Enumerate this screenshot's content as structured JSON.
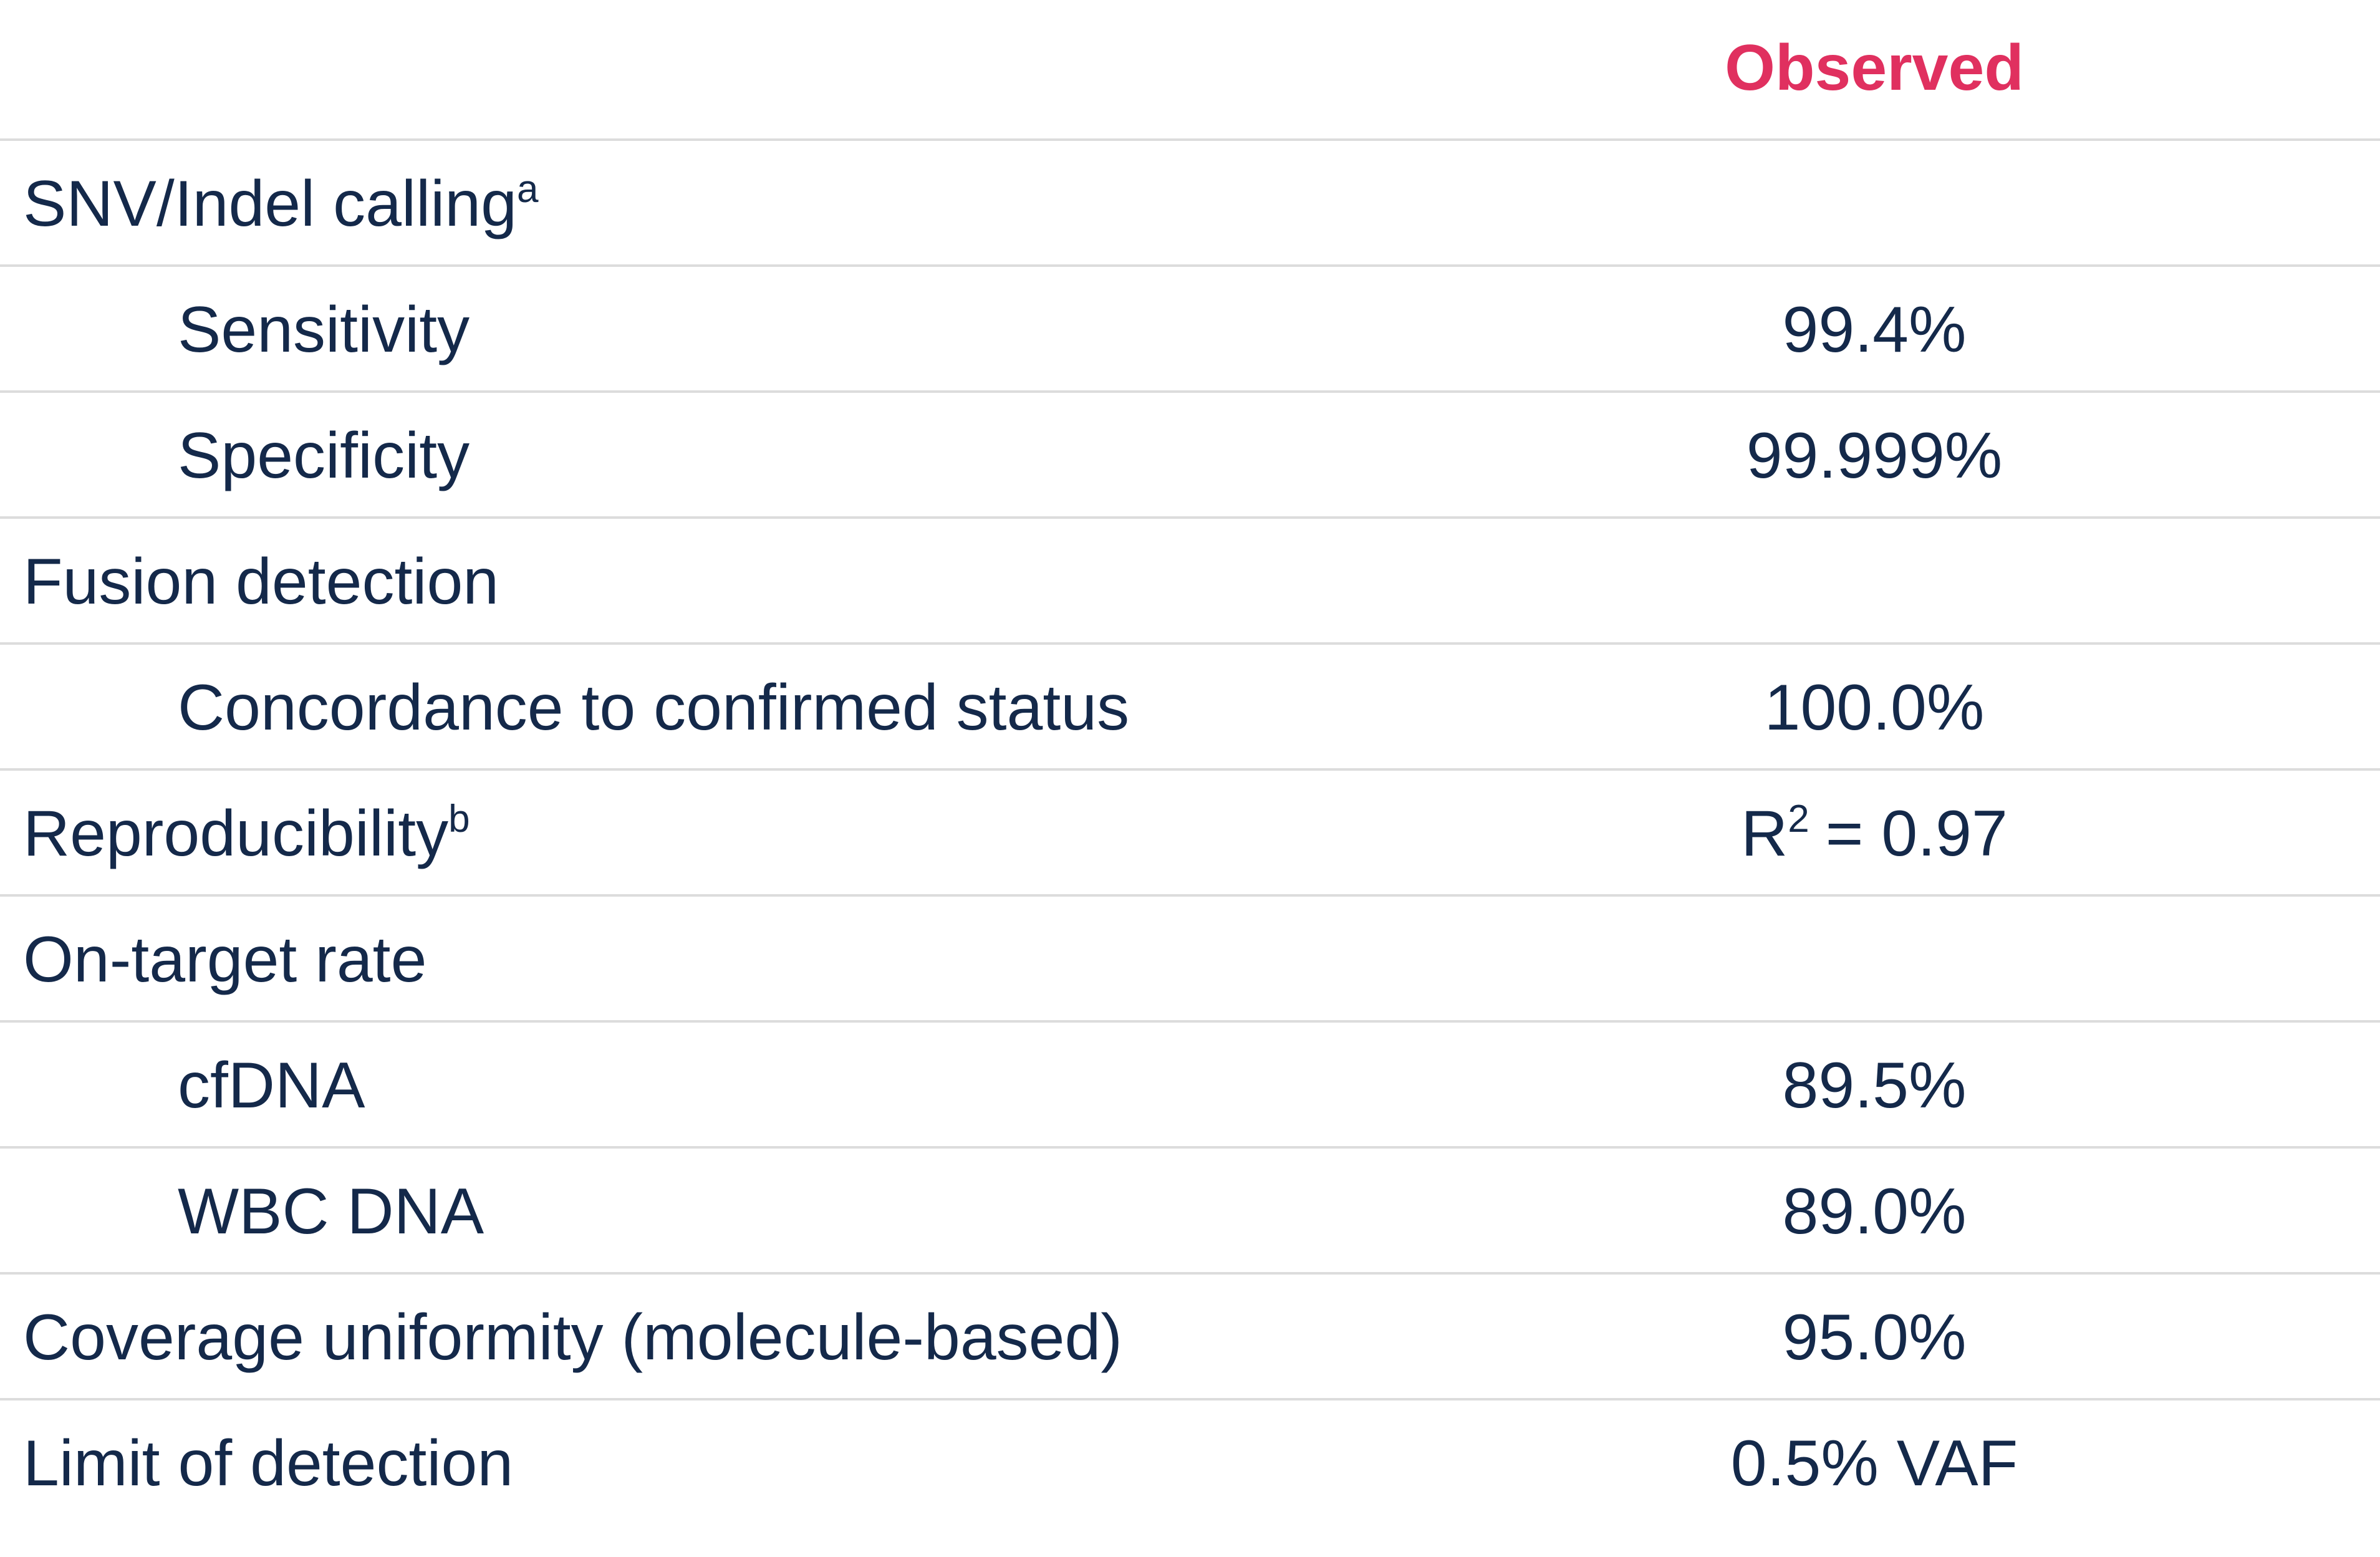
{
  "header": {
    "observed": "Observed"
  },
  "rows": [
    {
      "label": "SNV/Indel calling",
      "sup": "a"
    },
    {
      "label": "Sensitivity",
      "value": "99.4%"
    },
    {
      "label": "Specificity",
      "value": "99.999%"
    },
    {
      "label": "Fusion detection"
    },
    {
      "label": "Concordance to confirmed status",
      "value": "100.0%"
    },
    {
      "label": "Reproducibility",
      "sup": "b",
      "value": "R",
      "value_sup": "2",
      "value_rest": "= 0.97"
    },
    {
      "label": "On-target rate"
    },
    {
      "label": "cfDNA",
      "value": "89.5%"
    },
    {
      "label": "WBC DNA",
      "value": "89.0%"
    },
    {
      "label": "Coverage uniformity (molecule-based)",
      "value": "95.0%"
    },
    {
      "label": "Limit of detection",
      "value": "0.5% VAF"
    }
  ]
}
